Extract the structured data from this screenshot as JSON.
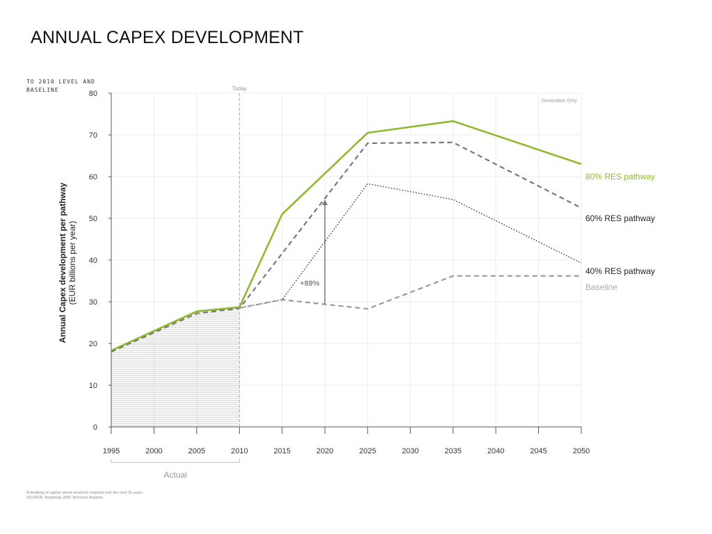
{
  "slide": {
    "title": "ANNUAL CAPEX DEVELOPMENT",
    "caption": "TO 2010 LEVEL AND BASELINE",
    "footnotes": [
      "A doubling of capital spend would be required over the next 15 years",
      "SOURCE: Roadmap 2050 Technical Analysis"
    ]
  },
  "chart_data": {
    "type": "line",
    "title": "",
    "ylabel_line1": "Annual Capex development per pathway",
    "ylabel_line2": "(EUR billions per year)",
    "xlabel": "",
    "xlim": [
      1995,
      2050
    ],
    "ylim": [
      0,
      80
    ],
    "x_ticks": [
      1995,
      2000,
      2005,
      2010,
      2015,
      2020,
      2025,
      2030,
      2035,
      2040,
      2045,
      2050
    ],
    "y_ticks": [
      0,
      10,
      20,
      30,
      40,
      50,
      60,
      70,
      80
    ],
    "grid": true,
    "corner_note": "Generation Only",
    "today_label": "Today",
    "today_x": 2010,
    "actual_label": "Actual",
    "actual_range": [
      1995,
      2010
    ],
    "arrow": {
      "x": 2020,
      "from": 29.5,
      "to": 54.5,
      "label": "+89%"
    },
    "series": [
      {
        "name": "80% RES pathway",
        "color": "#8dba2d",
        "style": "solid",
        "x": [
          1995,
          2005,
          2010,
          2015,
          2025,
          2035,
          2050
        ],
        "values": [
          18.3,
          27.7,
          28.7,
          51,
          70.5,
          73.3,
          63
        ]
      },
      {
        "name": "60% RES pathway",
        "color": "#777777",
        "style": "dashed",
        "x": [
          1995,
          2005,
          2010,
          2025,
          2035,
          2050
        ],
        "values": [
          18.0,
          27.2,
          28.4,
          68.0,
          68.2,
          52.5
        ]
      },
      {
        "name": "40% RES pathway",
        "color": "#222222",
        "style": "dotted",
        "x": [
          2010,
          2015,
          2025,
          2035,
          2050
        ],
        "values": [
          28.5,
          30.5,
          58.3,
          54.5,
          39.3
        ]
      },
      {
        "name": "Baseline",
        "color": "#999999",
        "style": "dashed",
        "x": [
          2010,
          2015,
          2025,
          2035,
          2050
        ],
        "values": [
          28.5,
          30.5,
          28.3,
          36.2,
          36.2
        ]
      }
    ],
    "legend_colors": [
      "#8dba2d",
      "#222222",
      "#222222",
      "#aaaaaa"
    ]
  }
}
